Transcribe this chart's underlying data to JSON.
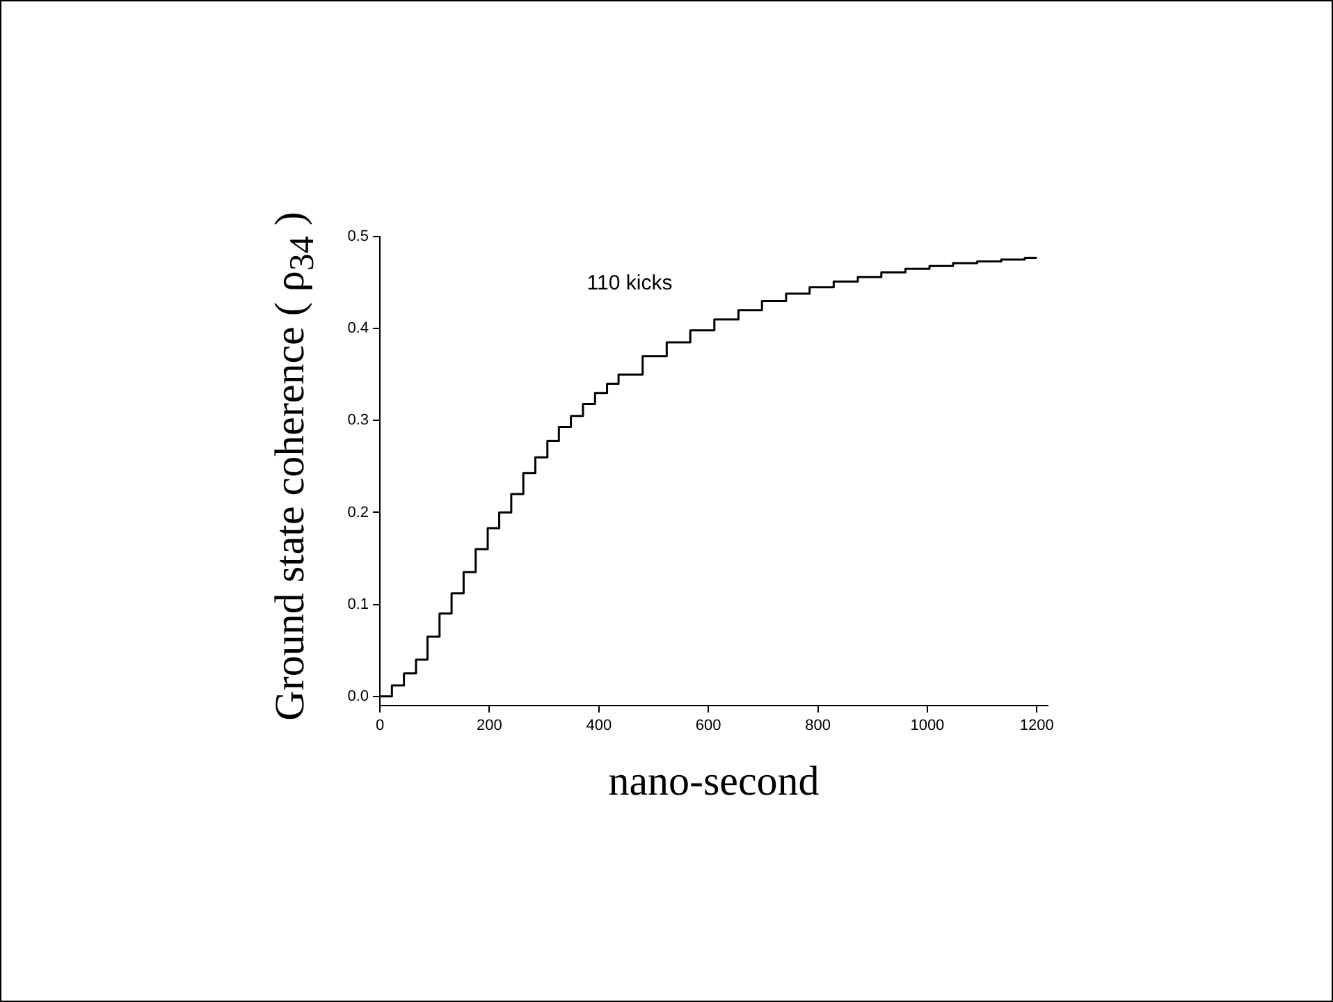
{
  "chart_data": {
    "type": "step",
    "xlabel": "nano-second",
    "ylabel": "Ground state coherence ( ρ$_{34}$ )",
    "annotations": [
      "110 kicks"
    ],
    "xlim": [
      0,
      1220
    ],
    "xticks": [
      0,
      200,
      400,
      600,
      800,
      1000,
      1200
    ],
    "ylim": [
      -0.01,
      0.5
    ],
    "yticks": [
      {
        "value": 0,
        "label": "0.0"
      },
      {
        "value": 0.1,
        "label": "0.1"
      },
      {
        "value": 0.2,
        "label": "0.2"
      },
      {
        "value": 0.3,
        "label": "0.3"
      },
      {
        "value": 0.4,
        "label": "0.4"
      },
      {
        "value": 0.5,
        "label": "0.5"
      }
    ],
    "grid": false,
    "legend": false,
    "marker": "none",
    "line_style": "solid",
    "series": [
      {
        "color": "#000000",
        "x": [
          0,
          22,
          44,
          66,
          87,
          109,
          131,
          153,
          175,
          197,
          218,
          240,
          262,
          284,
          306,
          327,
          349,
          371,
          393,
          415,
          436,
          480,
          524,
          567,
          611,
          655,
          698,
          742,
          785,
          829,
          873,
          916,
          960,
          1004,
          1047,
          1091,
          1135,
          1178,
          1200
        ],
        "values": [
          0,
          0.012,
          0.025,
          0.04,
          0.065,
          0.09,
          0.112,
          0.135,
          0.16,
          0.183,
          0.2,
          0.22,
          0.243,
          0.26,
          0.278,
          0.293,
          0.305,
          0.318,
          0.33,
          0.34,
          0.35,
          0.37,
          0.385,
          0.398,
          0.41,
          0.42,
          0.43,
          0.438,
          0.445,
          0.451,
          0.456,
          0.461,
          0.465,
          0.468,
          0.471,
          0.473,
          0.475,
          0.477,
          0.477
        ]
      }
    ]
  }
}
